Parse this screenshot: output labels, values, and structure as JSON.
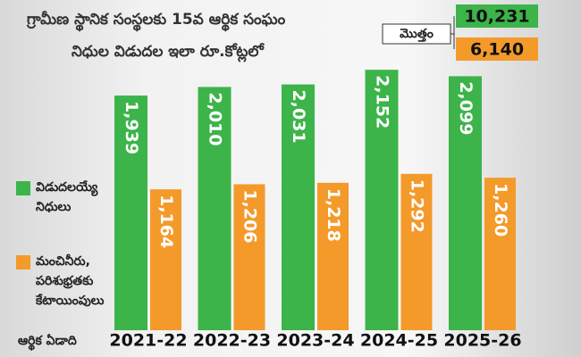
{
  "chart_data": {
    "type": "bar",
    "title": "గ్రామీణ స్థానిక సంస్థలకు 15వ ఆర్థిక సంఘం",
    "subtitle": "నిధుల విడుదల ఇలా రూ.కోట్లలో",
    "x_label": "ఆర్థిక ఏడాది",
    "total_label": "మొత్తం",
    "categories": [
      "2021-22",
      "2022-23",
      "2023-24",
      "2024-25",
      "2025-26"
    ],
    "series": [
      {
        "name": "విడుదలయ్యే నిధులు",
        "color": "#3cb44a",
        "values": [
          1939,
          2010,
          2031,
          2152,
          2099
        ],
        "value_labels": [
          "1,939",
          "2,010",
          "2,031",
          "2,152",
          "2,099"
        ],
        "total": 10231,
        "total_label": "10,231"
      },
      {
        "name": "మంచినీరు, పరిశుభ్రతకు కేటాయింపులు",
        "color": "#f39a2b",
        "values": [
          1164,
          1206,
          1218,
          1292,
          1260
        ],
        "value_labels": [
          "1,164",
          "1,206",
          "1,218",
          "1,292",
          "1,260"
        ],
        "total": 6140,
        "total_label": "6,140"
      }
    ]
  }
}
